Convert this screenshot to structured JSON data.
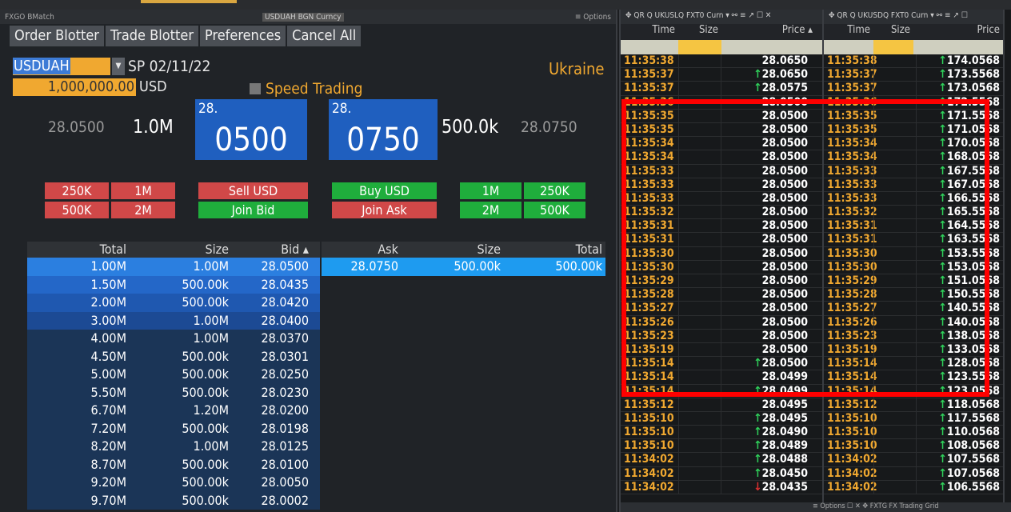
{
  "fxgo": {
    "title": "FXGO BMatch",
    "security": "USDUAH BGN Curncy",
    "options": "≡ Options",
    "tabs": [
      "Order Blotter",
      "Trade Blotter",
      "Preferences",
      "Cancel All"
    ],
    "pair": "USDUAH",
    "settle": "SP 02/11/22",
    "amount": "1,000,000.00",
    "amount_ccy": "USD",
    "speed_trading": "Speed Trading",
    "country": "Ukraine",
    "bid": {
      "price": "28.0500",
      "size": "1.0M",
      "big_prefix": "28.",
      "big_digits": "0500"
    },
    "ask": {
      "price": "28.0750",
      "size": "500.0k",
      "big_prefix": "28.",
      "big_digits": "0750"
    },
    "sell_qty": [
      "250K",
      "1M",
      "500K",
      "2M"
    ],
    "sell_label": "Sell USD",
    "join_bid": "Join Bid",
    "buy_label": "Buy USD",
    "join_ask": "Join Ask",
    "buy_qty": [
      "1M",
      "250K",
      "2M",
      "500K"
    ],
    "bid_headers": [
      "Total",
      "Size",
      "Bid ▴"
    ],
    "ask_headers": [
      "Ask",
      "Size",
      "Total"
    ],
    "bids": [
      [
        "1.00M",
        "1.00M",
        "28.0500"
      ],
      [
        "1.50M",
        "500.00k",
        "28.0435"
      ],
      [
        "2.00M",
        "500.00k",
        "28.0420"
      ],
      [
        "3.00M",
        "1.00M",
        "28.0400"
      ],
      [
        "4.00M",
        "1.00M",
        "28.0370"
      ],
      [
        "4.50M",
        "500.00k",
        "28.0301"
      ],
      [
        "5.00M",
        "500.00k",
        "28.0250"
      ],
      [
        "5.50M",
        "500.00k",
        "28.0230"
      ],
      [
        "6.70M",
        "1.20M",
        "28.0200"
      ],
      [
        "7.20M",
        "500.00k",
        "28.0198"
      ],
      [
        "8.20M",
        "1.00M",
        "28.0125"
      ],
      [
        "8.70M",
        "500.00k",
        "28.0100"
      ],
      [
        "9.20M",
        "500.00k",
        "28.0050"
      ],
      [
        "9.70M",
        "500.00k",
        "28.0002"
      ]
    ],
    "asks": [
      [
        "28.0750",
        "500.00k",
        "500.00k"
      ]
    ]
  },
  "colors": {
    "accent": "#f0a830",
    "bid_blue": "#1f5fbf",
    "sell_red": "#d04848",
    "buy_green": "#1fae3c",
    "highlight": "#ff0000"
  },
  "tickers": [
    {
      "title": "✥ QR Q  UKUSLQ FXT0 Curn ▾ ⚯ ≡ ↗ ☐ ✕",
      "headers": [
        "Time",
        "Size",
        "Price ▴"
      ],
      "rows": [
        [
          "11:35:38",
          "28.0650",
          ""
        ],
        [
          "11:35:37",
          "28.0650",
          "up"
        ],
        [
          "11:35:37",
          "28.0575",
          "up"
        ],
        [
          "11:35:36",
          "28.0500",
          ""
        ],
        [
          "11:35:35",
          "28.0500",
          ""
        ],
        [
          "11:35:35",
          "28.0500",
          ""
        ],
        [
          "11:35:34",
          "28.0500",
          ""
        ],
        [
          "11:35:34",
          "28.0500",
          ""
        ],
        [
          "11:35:33",
          "28.0500",
          ""
        ],
        [
          "11:35:33",
          "28.0500",
          ""
        ],
        [
          "11:35:33",
          "28.0500",
          ""
        ],
        [
          "11:35:32",
          "28.0500",
          ""
        ],
        [
          "11:35:31",
          "28.0500",
          ""
        ],
        [
          "11:35:31",
          "28.0500",
          ""
        ],
        [
          "11:35:30",
          "28.0500",
          ""
        ],
        [
          "11:35:30",
          "28.0500",
          ""
        ],
        [
          "11:35:29",
          "28.0500",
          ""
        ],
        [
          "11:35:28",
          "28.0500",
          ""
        ],
        [
          "11:35:27",
          "28.0500",
          ""
        ],
        [
          "11:35:26",
          "28.0500",
          ""
        ],
        [
          "11:35:23",
          "28.0500",
          ""
        ],
        [
          "11:35:19",
          "28.0500",
          ""
        ],
        [
          "11:35:14",
          "28.0500",
          "up"
        ],
        [
          "11:35:14",
          "28.0499",
          ""
        ],
        [
          "11:35:14",
          "28.0499",
          "up"
        ],
        [
          "11:35:12",
          "28.0495",
          ""
        ],
        [
          "11:35:10",
          "28.0495",
          "up"
        ],
        [
          "11:35:10",
          "28.0490",
          "up"
        ],
        [
          "11:35:10",
          "28.0489",
          "up"
        ],
        [
          "11:34:02",
          "28.0488",
          "up"
        ],
        [
          "11:34:02",
          "28.0450",
          "up"
        ],
        [
          "11:34:02",
          "28.0435",
          "down"
        ]
      ]
    },
    {
      "title": "✥ QR Q  UKUSDQ FXT0 Curn ▾ ⚯ ≡ ↗ ☐",
      "headers": [
        "Time",
        "Size",
        "Price"
      ],
      "rows": [
        [
          "11:35:38",
          "174.0568",
          "up"
        ],
        [
          "11:35:37",
          "173.5568",
          "up"
        ],
        [
          "11:35:37",
          "173.0568",
          "up"
        ],
        [
          "11:35:36",
          "172.5568",
          "up"
        ],
        [
          "11:35:35",
          "171.5568",
          "up"
        ],
        [
          "11:35:35",
          "171.0568",
          "up"
        ],
        [
          "11:35:34",
          "170.0568",
          "up"
        ],
        [
          "11:35:34",
          "168.0568",
          "up"
        ],
        [
          "11:35:33",
          "167.5568",
          "up"
        ],
        [
          "11:35:33",
          "167.0568",
          "up"
        ],
        [
          "11:35:33",
          "166.5568",
          "up"
        ],
        [
          "11:35:32",
          "165.5568",
          "up"
        ],
        [
          "11:35:31",
          "164.5568",
          "up"
        ],
        [
          "11:35:31",
          "163.5568",
          "up"
        ],
        [
          "11:35:30",
          "153.5568",
          "up"
        ],
        [
          "11:35:30",
          "153.0568",
          "up"
        ],
        [
          "11:35:29",
          "151.0568",
          "up"
        ],
        [
          "11:35:28",
          "150.5568",
          "up"
        ],
        [
          "11:35:27",
          "140.5568",
          "up"
        ],
        [
          "11:35:26",
          "140.0568",
          "up"
        ],
        [
          "11:35:23",
          "138.0568",
          "up"
        ],
        [
          "11:35:19",
          "133.0568",
          "up"
        ],
        [
          "11:35:14",
          "128.0568",
          "up"
        ],
        [
          "11:35:14",
          "123.5568",
          "up"
        ],
        [
          "11:35:14",
          "123.0568",
          "up"
        ],
        [
          "11:35:12",
          "118.0568",
          "up"
        ],
        [
          "11:35:10",
          "117.5568",
          "up"
        ],
        [
          "11:35:10",
          "110.0568",
          "up"
        ],
        [
          "11:35:10",
          "108.0568",
          "up"
        ],
        [
          "11:34:02",
          "107.5568",
          "up"
        ],
        [
          "11:34:02",
          "107.0568",
          "up"
        ],
        [
          "11:34:02",
          "106.5568",
          "up"
        ]
      ]
    }
  ],
  "bottom": "≡ Options  ☐ ✕   ✥ FXTG FX Trading Grid"
}
